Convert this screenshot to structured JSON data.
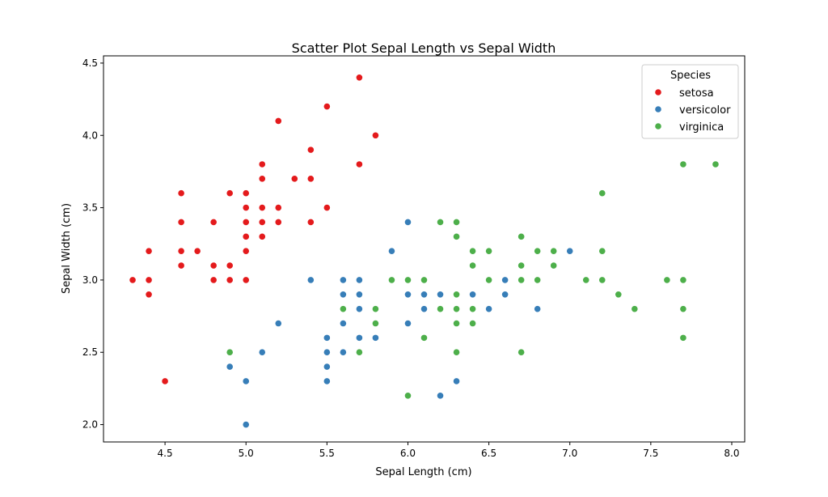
{
  "chart_data": {
    "type": "scatter",
    "title": "Scatter Plot Sepal Length vs Sepal Width",
    "xlabel": "Sepal Length (cm)",
    "ylabel": "Sepal Width (cm)",
    "xlim": [
      4.12,
      8.08
    ],
    "ylim": [
      1.88,
      4.55
    ],
    "xticks": [
      4.5,
      5.0,
      5.5,
      6.0,
      6.5,
      7.0,
      7.5,
      8.0
    ],
    "xtick_labels": [
      "4.5",
      "5.0",
      "5.5",
      "6.0",
      "6.5",
      "7.0",
      "7.5",
      "8.0"
    ],
    "yticks": [
      2.0,
      2.5,
      3.0,
      3.5,
      4.0,
      4.5
    ],
    "ytick_labels": [
      "2.0",
      "2.5",
      "3.0",
      "3.5",
      "4.0",
      "4.5"
    ],
    "grid": false,
    "legend": {
      "title": "Species",
      "placement": "top-right"
    },
    "series": [
      {
        "name": "setosa",
        "color": "#e41a1c",
        "points": [
          [
            5.1,
            3.5
          ],
          [
            4.9,
            3.0
          ],
          [
            4.7,
            3.2
          ],
          [
            4.6,
            3.1
          ],
          [
            5.0,
            3.6
          ],
          [
            5.4,
            3.9
          ],
          [
            4.6,
            3.4
          ],
          [
            5.0,
            3.4
          ],
          [
            4.4,
            2.9
          ],
          [
            4.9,
            3.1
          ],
          [
            5.4,
            3.7
          ],
          [
            4.8,
            3.4
          ],
          [
            4.8,
            3.0
          ],
          [
            4.3,
            3.0
          ],
          [
            5.8,
            4.0
          ],
          [
            5.7,
            4.4
          ],
          [
            5.4,
            3.9
          ],
          [
            5.1,
            3.5
          ],
          [
            5.7,
            3.8
          ],
          [
            5.1,
            3.8
          ],
          [
            5.4,
            3.4
          ],
          [
            5.1,
            3.7
          ],
          [
            4.6,
            3.6
          ],
          [
            5.1,
            3.3
          ],
          [
            4.8,
            3.4
          ],
          [
            5.0,
            3.0
          ],
          [
            5.0,
            3.4
          ],
          [
            5.2,
            3.5
          ],
          [
            5.2,
            3.4
          ],
          [
            4.7,
            3.2
          ],
          [
            4.8,
            3.1
          ],
          [
            5.4,
            3.4
          ],
          [
            5.2,
            4.1
          ],
          [
            5.5,
            4.2
          ],
          [
            4.9,
            3.1
          ],
          [
            5.0,
            3.2
          ],
          [
            5.5,
            3.5
          ],
          [
            4.9,
            3.6
          ],
          [
            4.4,
            3.0
          ],
          [
            5.1,
            3.4
          ],
          [
            5.0,
            3.5
          ],
          [
            4.5,
            2.3
          ],
          [
            4.4,
            3.2
          ],
          [
            5.0,
            3.5
          ],
          [
            5.1,
            3.8
          ],
          [
            4.8,
            3.0
          ],
          [
            5.1,
            3.8
          ],
          [
            4.6,
            3.2
          ],
          [
            5.3,
            3.7
          ],
          [
            5.0,
            3.3
          ]
        ]
      },
      {
        "name": "versicolor",
        "color": "#377eb8",
        "points": [
          [
            7.0,
            3.2
          ],
          [
            6.4,
            3.2
          ],
          [
            6.9,
            3.1
          ],
          [
            5.5,
            2.3
          ],
          [
            6.5,
            2.8
          ],
          [
            5.7,
            2.8
          ],
          [
            6.3,
            3.3
          ],
          [
            4.9,
            2.4
          ],
          [
            6.6,
            2.9
          ],
          [
            5.2,
            2.7
          ],
          [
            5.0,
            2.0
          ],
          [
            5.9,
            3.0
          ],
          [
            6.0,
            2.2
          ],
          [
            6.1,
            2.9
          ],
          [
            5.6,
            2.9
          ],
          [
            6.7,
            3.1
          ],
          [
            5.6,
            3.0
          ],
          [
            5.8,
            2.7
          ],
          [
            6.2,
            2.2
          ],
          [
            5.6,
            2.5
          ],
          [
            5.9,
            3.2
          ],
          [
            6.1,
            2.8
          ],
          [
            6.3,
            2.5
          ],
          [
            6.1,
            2.8
          ],
          [
            6.4,
            2.9
          ],
          [
            6.6,
            3.0
          ],
          [
            6.8,
            2.8
          ],
          [
            6.7,
            3.0
          ],
          [
            6.0,
            2.9
          ],
          [
            5.7,
            2.6
          ],
          [
            5.5,
            2.4
          ],
          [
            5.5,
            2.4
          ],
          [
            5.8,
            2.7
          ],
          [
            6.0,
            2.7
          ],
          [
            5.4,
            3.0
          ],
          [
            6.0,
            3.4
          ],
          [
            6.7,
            3.1
          ],
          [
            6.3,
            2.3
          ],
          [
            5.6,
            3.0
          ],
          [
            5.5,
            2.5
          ],
          [
            5.5,
            2.6
          ],
          [
            6.1,
            3.0
          ],
          [
            5.8,
            2.6
          ],
          [
            5.0,
            2.3
          ],
          [
            5.6,
            2.7
          ],
          [
            5.7,
            3.0
          ],
          [
            5.7,
            2.9
          ],
          [
            6.2,
            2.9
          ],
          [
            5.1,
            2.5
          ],
          [
            5.7,
            2.8
          ]
        ]
      },
      {
        "name": "virginica",
        "color": "#4daf4a",
        "points": [
          [
            6.3,
            3.3
          ],
          [
            5.8,
            2.7
          ],
          [
            7.1,
            3.0
          ],
          [
            6.3,
            2.9
          ],
          [
            6.5,
            3.0
          ],
          [
            7.6,
            3.0
          ],
          [
            4.9,
            2.5
          ],
          [
            7.3,
            2.9
          ],
          [
            6.7,
            2.5
          ],
          [
            7.2,
            3.6
          ],
          [
            6.5,
            3.2
          ],
          [
            6.4,
            2.7
          ],
          [
            6.8,
            3.0
          ],
          [
            5.7,
            2.5
          ],
          [
            5.8,
            2.8
          ],
          [
            6.4,
            3.2
          ],
          [
            6.5,
            3.0
          ],
          [
            7.7,
            3.8
          ],
          [
            7.7,
            2.6
          ],
          [
            6.0,
            2.2
          ],
          [
            6.9,
            3.2
          ],
          [
            5.6,
            2.8
          ],
          [
            7.7,
            2.8
          ],
          [
            6.3,
            2.7
          ],
          [
            6.7,
            3.3
          ],
          [
            7.2,
            3.2
          ],
          [
            6.2,
            2.8
          ],
          [
            6.1,
            3.0
          ],
          [
            6.4,
            2.8
          ],
          [
            7.2,
            3.0
          ],
          [
            7.4,
            2.8
          ],
          [
            7.9,
            3.8
          ],
          [
            6.4,
            2.8
          ],
          [
            6.3,
            2.8
          ],
          [
            6.1,
            2.6
          ],
          [
            7.7,
            3.0
          ],
          [
            6.3,
            3.4
          ],
          [
            6.4,
            3.1
          ],
          [
            6.0,
            3.0
          ],
          [
            6.9,
            3.1
          ],
          [
            6.7,
            3.1
          ],
          [
            6.9,
            3.1
          ],
          [
            5.8,
            2.7
          ],
          [
            6.8,
            3.2
          ],
          [
            6.7,
            3.3
          ],
          [
            6.7,
            3.0
          ],
          [
            6.3,
            2.5
          ],
          [
            6.5,
            3.0
          ],
          [
            6.2,
            3.4
          ],
          [
            5.9,
            3.0
          ]
        ]
      }
    ]
  }
}
